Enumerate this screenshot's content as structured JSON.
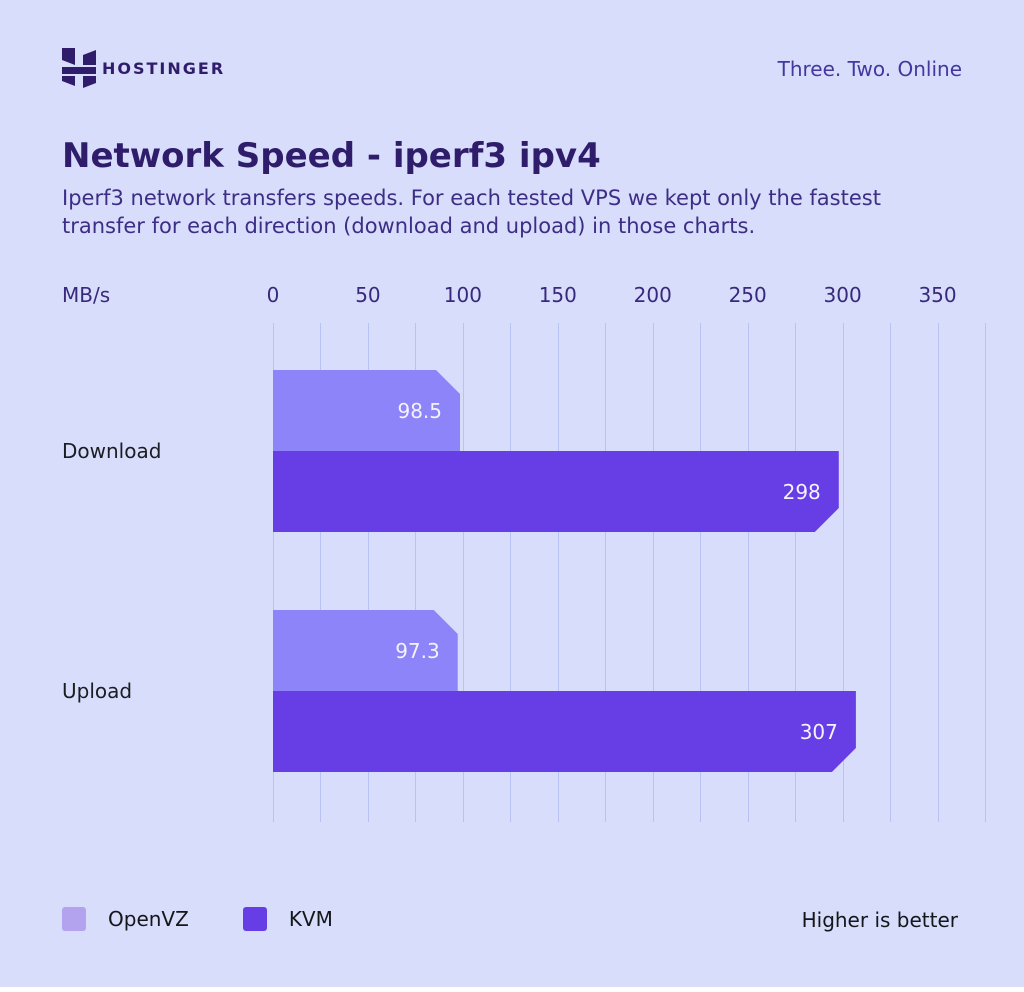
{
  "header": {
    "brand": "HOSTINGER",
    "tagline": "Three. Two. Online"
  },
  "title": "Network Speed - iperf3 ipv4",
  "subtitle_lines": [
    "Iperf3 network transfers speeds. For each tested VPS we kept only the fastest",
    "transfer for each direction (download and upload) in those charts."
  ],
  "chart_data": {
    "type": "bar",
    "orientation": "horizontal",
    "title": "Network Speed - iperf3 ipv4",
    "unit_label": "MB/s",
    "categories": [
      "Download",
      "Upload"
    ],
    "series": [
      {
        "name": "OpenVZ",
        "color": "#8C84F8",
        "legend_color": "#B3A3EE",
        "values": [
          98.5,
          97.3
        ],
        "labels": [
          "98.5",
          "97.3"
        ]
      },
      {
        "name": "KVM",
        "color": "#673DE6",
        "legend_color": "#673DE6",
        "values": [
          298,
          307
        ],
        "labels": [
          "298",
          "307"
        ]
      }
    ],
    "x_ticks": [
      0,
      50,
      100,
      150,
      200,
      250,
      300,
      350
    ],
    "axis_range": [
      0,
      375
    ],
    "grid_step": 25,
    "grid": true,
    "legend_position": "bottom-left",
    "note": "Higher is better"
  },
  "colors": {
    "background": "#D7DDFA",
    "grid": "#B9C2F4",
    "brand_dark": "#2F1C6A",
    "kvm_purple": "#673DE6",
    "openvz_purple": "#8C84F8",
    "openvz_legend": "#B3A3EE",
    "text_dark": "#1C1D22",
    "value_text": "#F4F2FC"
  }
}
